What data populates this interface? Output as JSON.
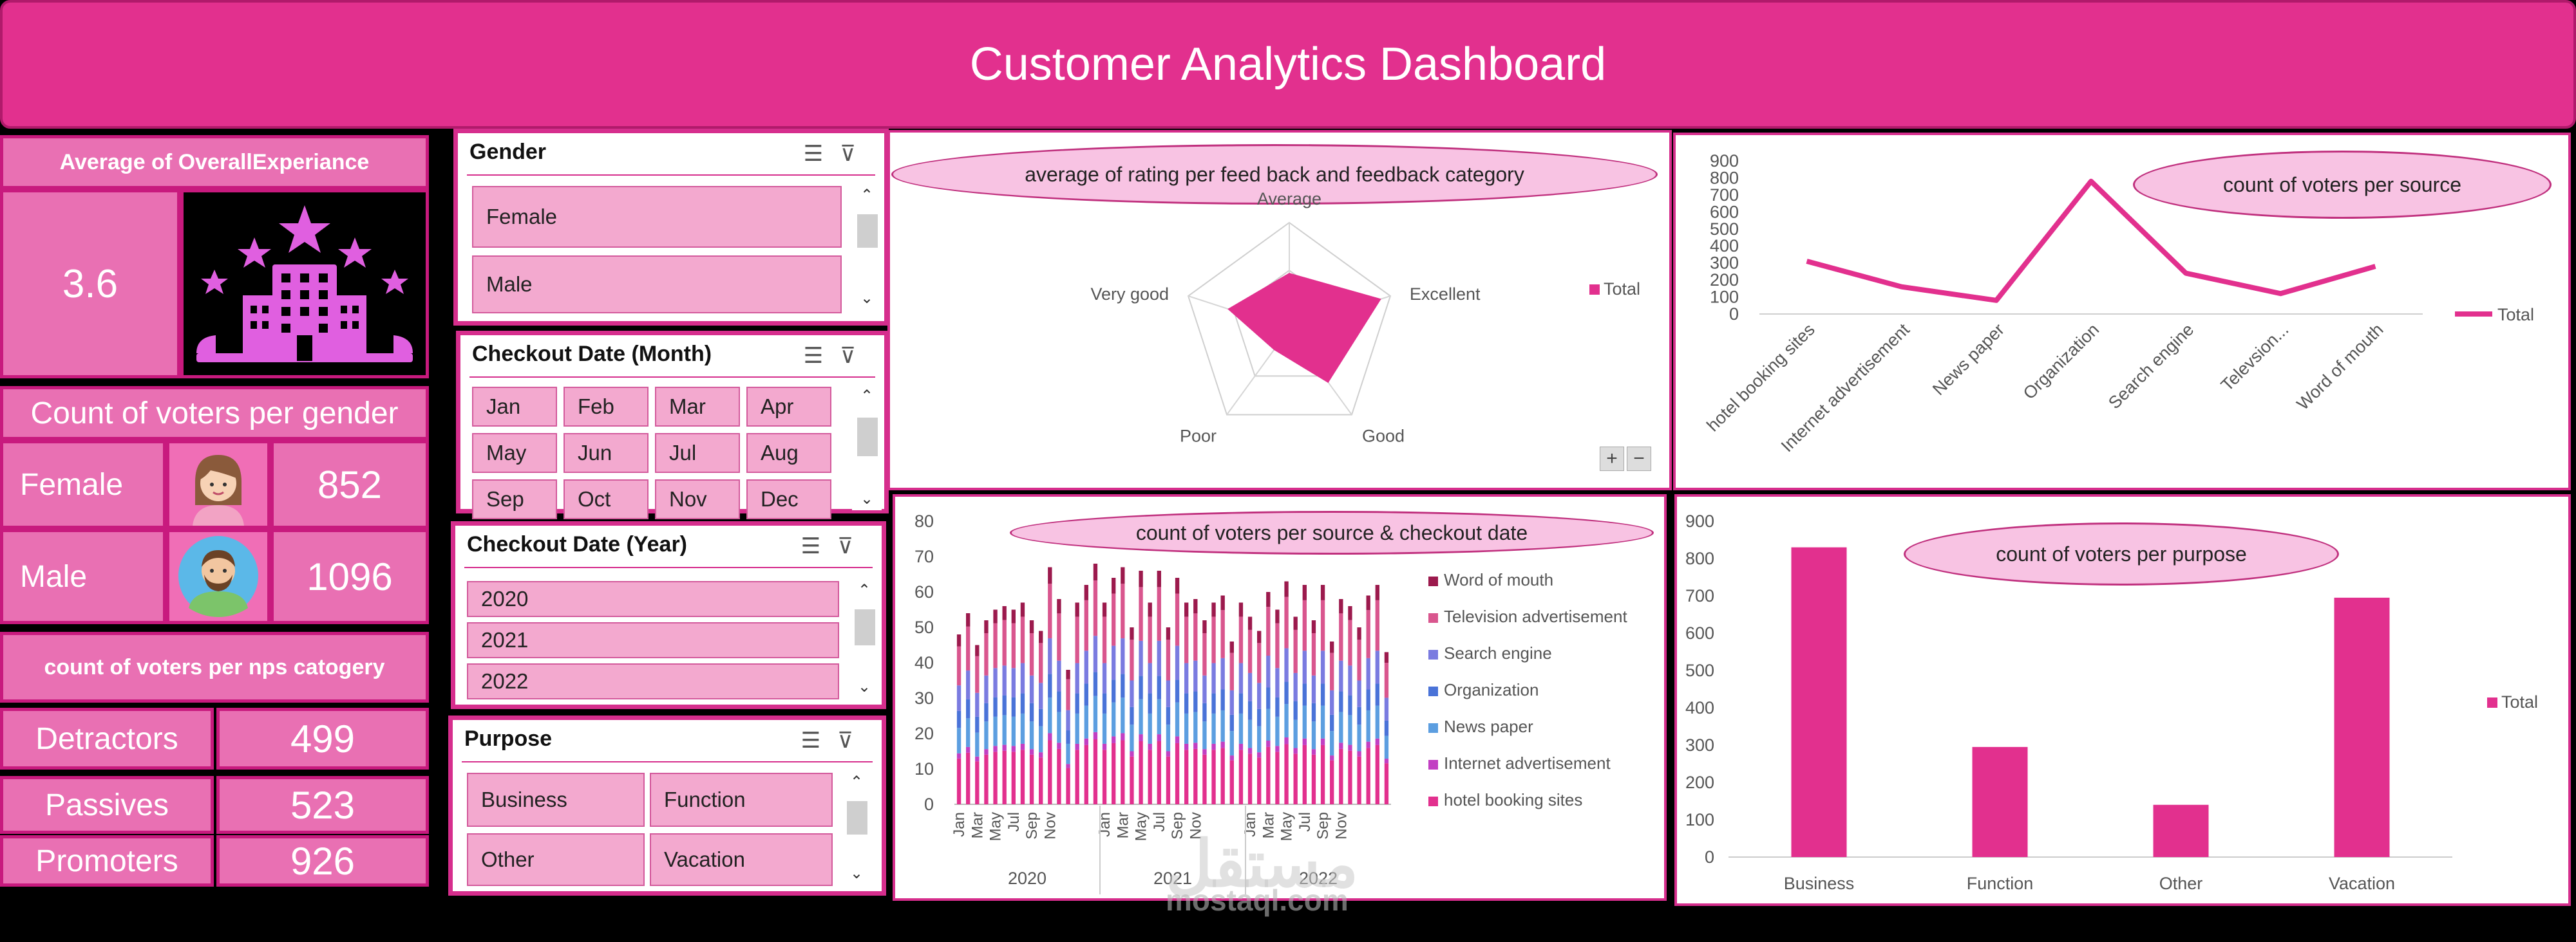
{
  "header": {
    "title": "Customer Analytics Dashboard"
  },
  "overall": {
    "label": "Average of OverallExperiance",
    "value": "3.6",
    "icon": "hotel-stars-icon"
  },
  "gender_count": {
    "title": "Count of voters per gender",
    "rows": [
      {
        "label": "Female",
        "value": "852",
        "icon": "female-avatar-icon"
      },
      {
        "label": "Male",
        "value": "1096",
        "icon": "male-avatar-icon"
      }
    ]
  },
  "nps": {
    "title": "count of voters per nps catogery",
    "rows": [
      {
        "label": "Detractors",
        "value": "499"
      },
      {
        "label": "Passives",
        "value": "523"
      },
      {
        "label": "Promoters",
        "value": "926"
      }
    ]
  },
  "slicers": {
    "gender": {
      "title": "Gender",
      "items": [
        "Female",
        "Male"
      ]
    },
    "month": {
      "title": "Checkout Date (Month)",
      "items": [
        "Jan",
        "Feb",
        "Mar",
        "Apr",
        "May",
        "Jun",
        "Jul",
        "Aug",
        "Sep",
        "Oct",
        "Nov",
        "Dec"
      ]
    },
    "year": {
      "title": "Checkout Date (Year)",
      "items": [
        "2020",
        "2021",
        "2022"
      ]
    },
    "purpose": {
      "title": "Purpose",
      "items": [
        "Business",
        "Function",
        "Other",
        "Vacation"
      ]
    },
    "icons": [
      "multi-select-icon",
      "clear-filter-icon"
    ]
  },
  "colors": {
    "accent": "#e2308e",
    "panel_border": "#d62e8d",
    "kpi_bg": "#e970b3",
    "ellipse": "#f8c3e3"
  },
  "chart_data": [
    {
      "type": "radar",
      "title": "average of rating per feed back and feedback category",
      "categories": [
        "Average",
        "Excellent",
        "Good",
        "Poor",
        "Very good"
      ],
      "series": [
        {
          "name": "Total",
          "values": [
            2.6,
            4.5,
            3.1,
            1.2,
            3.0
          ]
        }
      ],
      "rmax": 5,
      "legend": "right",
      "zoom_buttons": [
        "+",
        "−"
      ]
    },
    {
      "type": "line",
      "title": "count of voters per source",
      "categories": [
        "hotel booking sites",
        "Internet advertisement",
        "News paper",
        "Organization",
        "Search engine",
        "Televsion...",
        "Word of mouth"
      ],
      "series": [
        {
          "name": "Total",
          "values": [
            310,
            160,
            80,
            780,
            240,
            120,
            280
          ]
        }
      ],
      "yticks": [
        "0",
        "100",
        "200",
        "300",
        "400",
        "500",
        "600",
        "700",
        "800",
        "900"
      ],
      "ylim": [
        0,
        900
      ],
      "legend": "right"
    },
    {
      "type": "bar",
      "stacked": true,
      "title": "count of voters per source & checkout date",
      "years": [
        "2020",
        "2021",
        "2022"
      ],
      "month_labels": [
        "Jan",
        "Mar",
        "May",
        "Jul",
        "Sep",
        "Nov"
      ],
      "series_names": [
        "Word of mouth",
        "Television advertisement",
        "Search engine",
        "Organization",
        "News paper",
        "Internet advertisement",
        "hotel booking sites"
      ],
      "series_colors": [
        "#9c1a4d",
        "#d9568e",
        "#7a7be0",
        "#4a73d8",
        "#5c9ee0",
        "#c23fc3",
        "#e2308e"
      ],
      "totals": [
        48,
        54,
        45,
        52,
        55,
        56,
        55,
        57,
        52,
        49,
        67,
        58,
        38,
        57,
        62,
        68,
        57,
        64,
        67,
        50,
        66,
        57,
        66,
        50,
        64,
        57,
        58,
        52,
        57,
        59,
        46,
        57,
        53,
        49,
        60,
        55,
        63,
        53,
        62,
        52,
        62,
        46,
        58,
        56,
        50,
        59,
        62,
        43
      ],
      "yticks": [
        "0",
        "10",
        "20",
        "30",
        "40",
        "50",
        "60",
        "70",
        "80"
      ],
      "ylim": [
        0,
        80
      ],
      "legend": "right"
    },
    {
      "type": "bar",
      "title": "count of voters per purpose",
      "categories": [
        "Business",
        "Function",
        "Other",
        "Vacation"
      ],
      "series": [
        {
          "name": "Total",
          "values": [
            830,
            295,
            140,
            695
          ]
        }
      ],
      "yticks": [
        "0",
        "100",
        "200",
        "300",
        "400",
        "500",
        "600",
        "700",
        "800",
        "900"
      ],
      "ylim": [
        0,
        900
      ],
      "legend": "right"
    }
  ],
  "watermark": {
    "brand": "مستقل",
    "site": "mostaql.com"
  }
}
